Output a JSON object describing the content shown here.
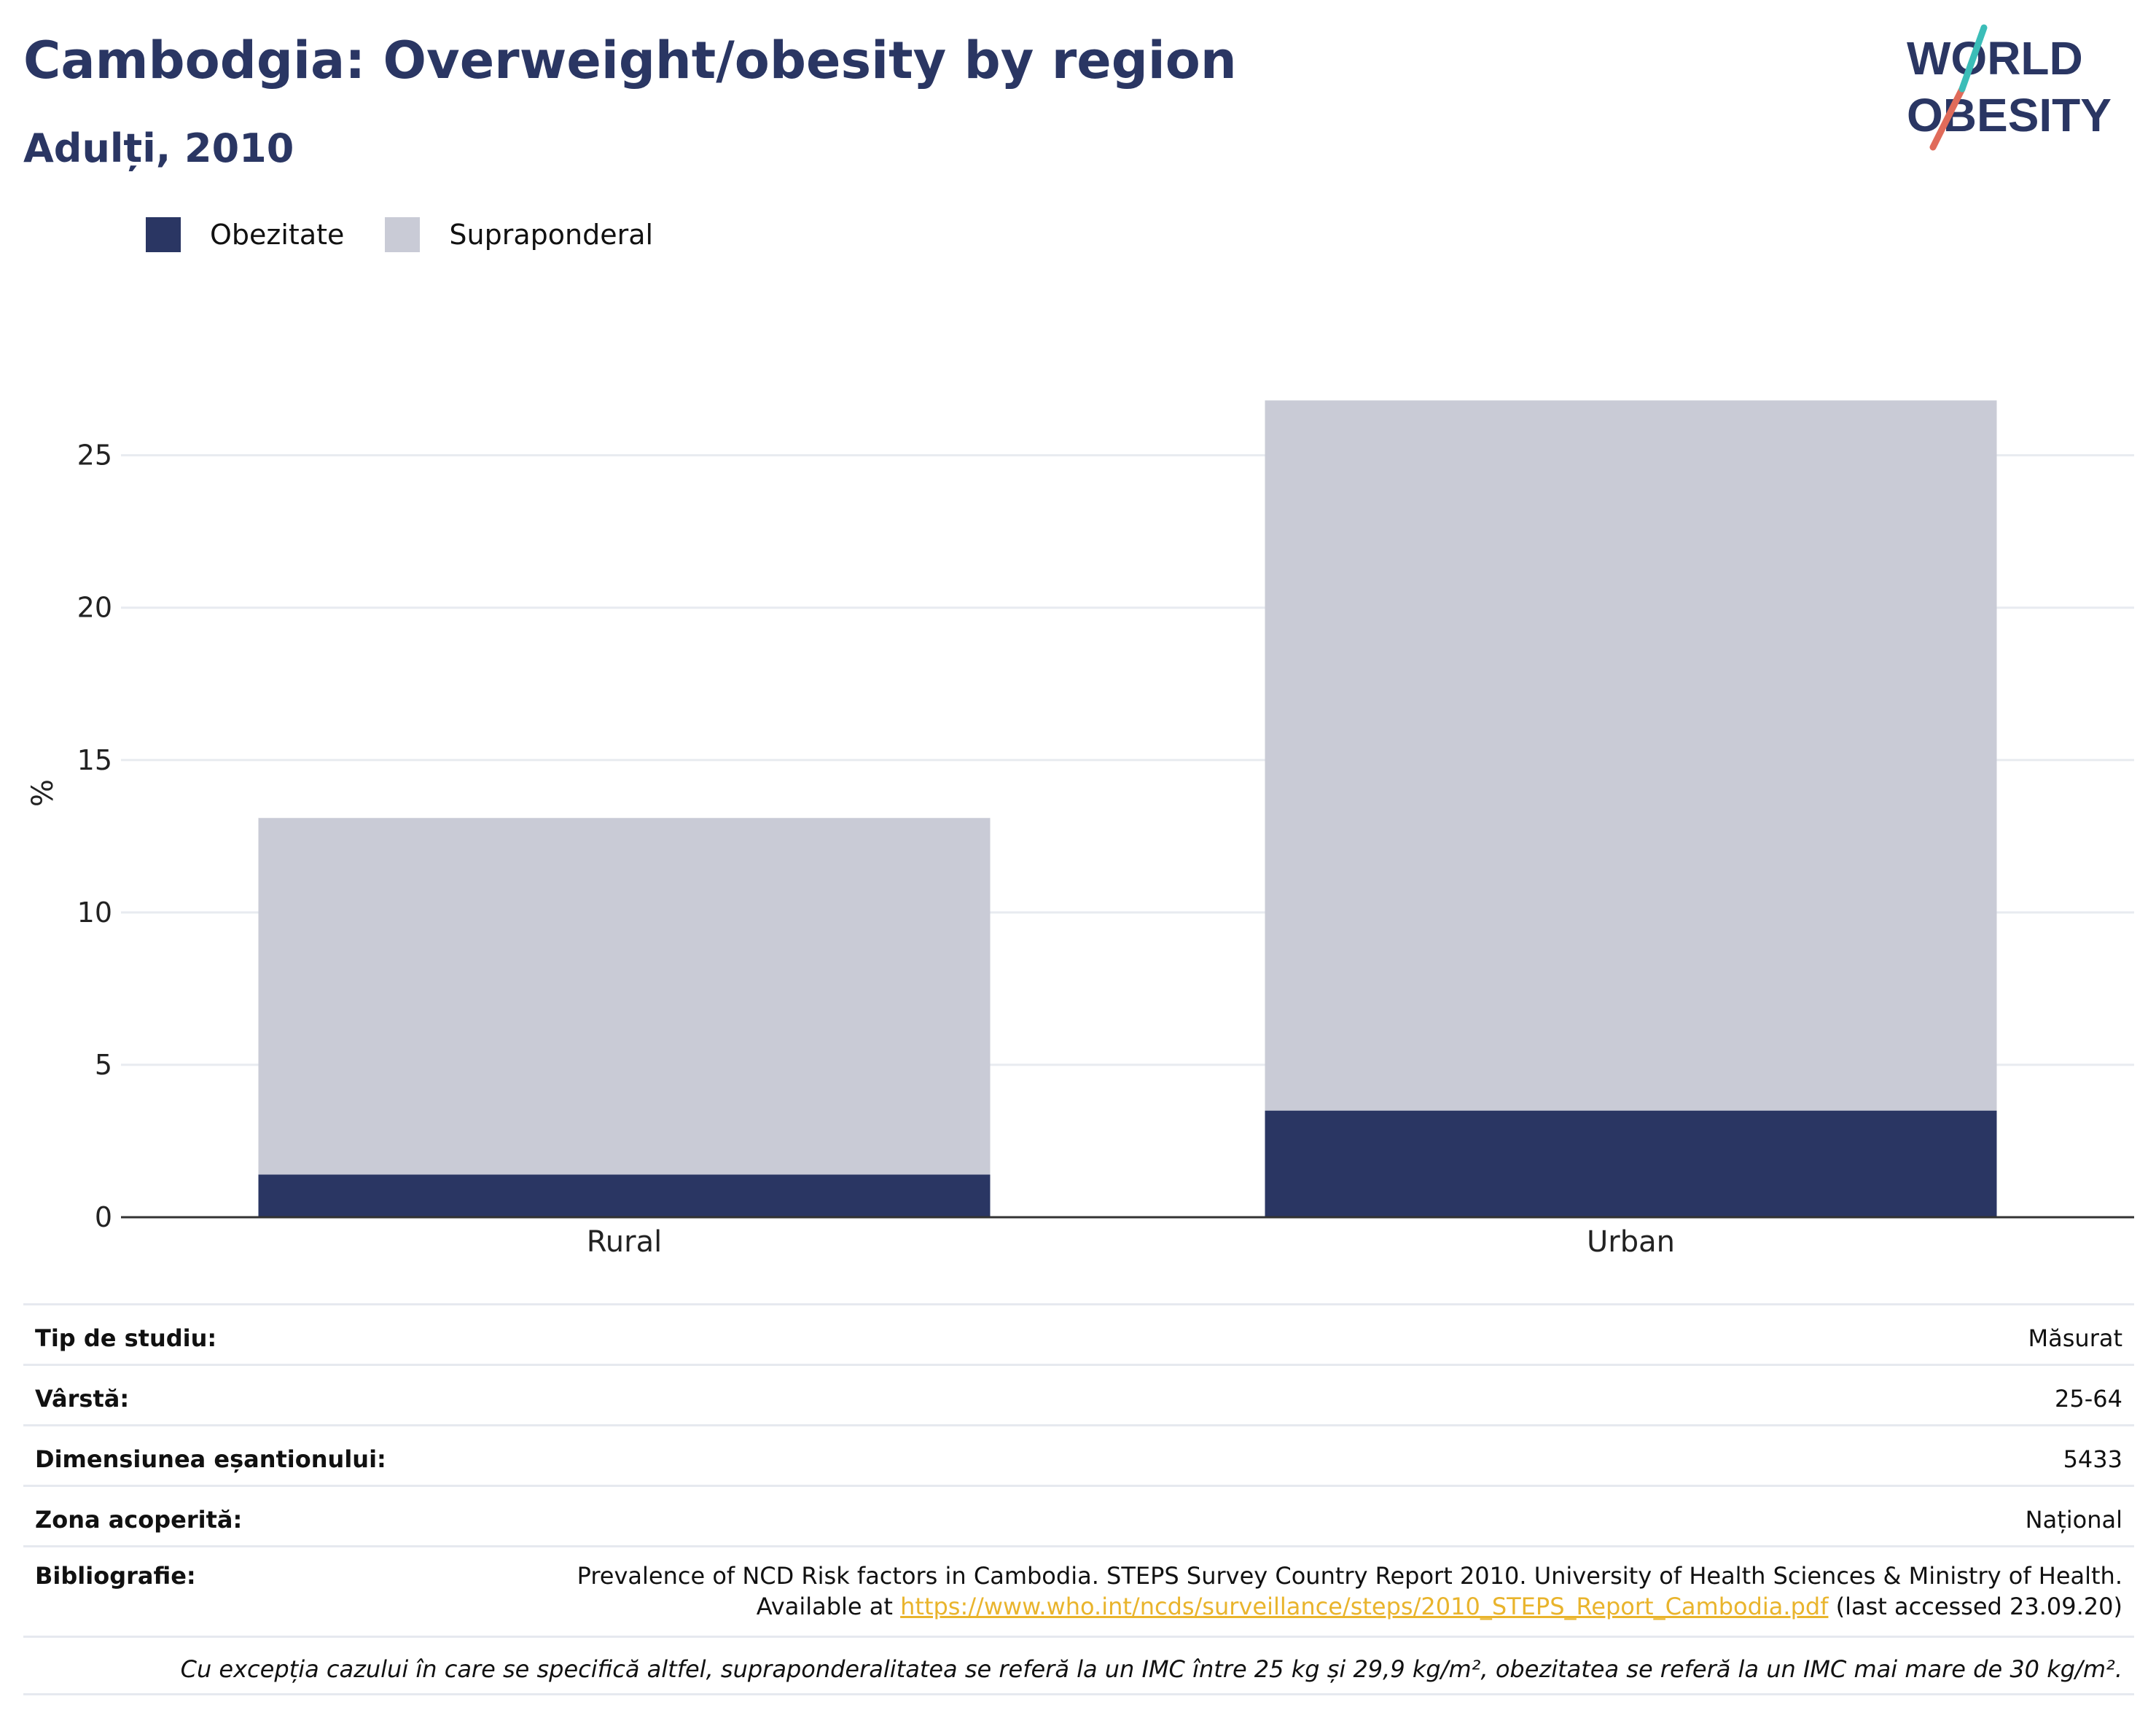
{
  "header": {
    "title": "Cambodgia: Overweight/obesity by region",
    "subtitle": "Adulți, 2010"
  },
  "logo": {
    "line1": "WORLD",
    "line2": "OBESITY"
  },
  "colors": {
    "obesity": "#2a3663",
    "overweight": "#c9cbd6",
    "title": "#2a3663",
    "link": "#e9b42c"
  },
  "chart_data": {
    "type": "bar",
    "stacked": true,
    "categories": [
      "Rural",
      "Urban"
    ],
    "series": [
      {
        "name": "Obezitate",
        "values": [
          1.4,
          3.5
        ]
      },
      {
        "name": "Supraponderal",
        "values": [
          11.7,
          23.3
        ]
      }
    ],
    "ylabel": "%",
    "xlabel": "",
    "ylim": [
      0,
      27
    ],
    "yticks": [
      0,
      5,
      10,
      15,
      20,
      25
    ],
    "grid": true,
    "legend_position": "top-left"
  },
  "meta": {
    "study_type": {
      "label": "Tip de studiu:",
      "value": "Măsurat"
    },
    "age": {
      "label": "Vârstă:",
      "value": "25-64"
    },
    "sample_size": {
      "label": "Dimensiunea eșantionului:",
      "value": "5433"
    },
    "coverage": {
      "label": "Zona acoperită:",
      "value": "Național"
    },
    "bibliography": {
      "label": "Bibliografie:",
      "line1": "Prevalence of NCD Risk factors in Cambodia. STEPS Survey Country Report 2010. University of Health Sciences & Ministry of Health.",
      "prefix": "Available at ",
      "link": "https://www.who.int/ncds/surveillance/steps/2010_STEPS_Report_Cambodia.pdf",
      "suffix": " (last accessed 23.09.20)"
    },
    "note": "Cu excepția cazului în care se specifică altfel, supraponderalitatea se referă la un IMC între 25 kg și 29,9 kg/m², obezitatea se referă la un IMC mai mare de 30 kg/m²."
  }
}
